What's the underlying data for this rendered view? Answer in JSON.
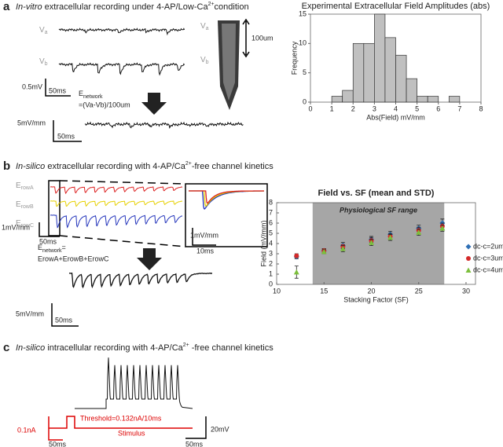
{
  "panel_a": {
    "letter": "a",
    "title_italic": "In-vitro",
    "title_text": " extracellular recording under 4-AP/Low-Ca",
    "title_sup": "2+",
    "title_end": "condition",
    "trace_labels": [
      {
        "main": "V",
        "sub": "a"
      },
      {
        "main": "V",
        "sub": "b"
      }
    ],
    "probe_labels": [
      {
        "main": "V",
        "sub": "a"
      },
      {
        "main": "V",
        "sub": "b"
      }
    ],
    "probe_scale": "100um",
    "scale_1": {
      "v": "0.5mV",
      "t": "50ms"
    },
    "equation": {
      "main": "E",
      "sub": "network",
      "line2": "=(Va-Vb)/100um"
    },
    "scale_2": {
      "v": "5mV/mm",
      "t": "50ms"
    }
  },
  "panel_b": {
    "letter": "b",
    "title_italic": "In-silico",
    "title_text": " extracellular recording with 4-AP/Ca",
    "title_sup": "2+",
    "title_end": "-free channel kinetics",
    "trace_labels": [
      {
        "main": "E",
        "sub": "rowA"
      },
      {
        "main": "E",
        "sub": "rowB"
      },
      {
        "main": "E",
        "sub": "rowC"
      }
    ],
    "scale_1": {
      "v": "1mV/mm",
      "t": "50ms"
    },
    "inset_scale": {
      "v": "1mV/mm",
      "t": "10ms"
    },
    "equation": {
      "main": "E",
      "sub": "network",
      "tail": "=",
      "line2": "ErowA+ErowB+ErowC"
    },
    "scale_2": {
      "v": "5mV/mm",
      "t": "50ms"
    }
  },
  "panel_c": {
    "letter": "c",
    "title_italic": "In-silico",
    "title_text": " intracellular recording with 4-AP/Ca",
    "title_sup": "2+",
    "title_end": " -free channel kinetics",
    "threshold": "Threshold=0.132nA/10ms",
    "stimulus": "Stimulus",
    "scale_i": {
      "v": "0.1nA",
      "t": "50ms"
    },
    "scale_v": {
      "v": "20mV",
      "t": "50ms"
    }
  },
  "chart_data": [
    {
      "type": "histogram",
      "title": "Experimental Extracellular Field Amplitudes (abs)",
      "xlabel": "Abs(Field) mV/mm",
      "ylabel": "Frequency",
      "bins": [
        1,
        1.5,
        2,
        2.5,
        3,
        3.5,
        4,
        4.5,
        5,
        5.5,
        6,
        6.5,
        7
      ],
      "values": [
        1,
        2,
        10,
        10,
        15,
        11,
        8,
        4,
        1,
        1,
        0,
        1
      ],
      "color": "#c0c0c0",
      "xlim": [
        0,
        8
      ],
      "xticks": [
        0,
        1,
        2,
        3,
        4,
        5,
        6,
        7,
        8
      ],
      "ylim": [
        0,
        15
      ],
      "yticks": [
        0,
        5,
        10,
        15
      ]
    },
    {
      "type": "scatter",
      "title": "Field vs. SF (mean and STD)",
      "xlabel": "Stacking Factor (SF)",
      "ylabel": "Field (mV/mm)",
      "shaded_region": {
        "x": [
          13.8,
          27.7
        ],
        "label": "Physiological SF range",
        "color": "#a6a6a6"
      },
      "x": [
        12.1,
        15,
        17,
        20,
        22,
        25,
        27.5
      ],
      "series": [
        {
          "name": "dc-c=2um",
          "color": "#2e6fb5",
          "marker": "diamond",
          "values": [
            2.7,
            3.3,
            3.8,
            4.4,
            4.9,
            5.5,
            6.0
          ],
          "errors": [
            0.2,
            0.2,
            0.3,
            0.3,
            0.3,
            0.3,
            0.4
          ]
        },
        {
          "name": "dc-c=3um",
          "color": "#d42a2a",
          "marker": "circle",
          "values": [
            2.8,
            3.3,
            3.7,
            4.3,
            4.7,
            5.3,
            5.7
          ],
          "errors": [
            0.2,
            0.2,
            0.2,
            0.3,
            0.3,
            0.3,
            0.3
          ]
        },
        {
          "name": "dc-c=4um",
          "color": "#7cbf3c",
          "marker": "triangle",
          "values": [
            1.2,
            3.2,
            3.5,
            4.1,
            4.6,
            5.1,
            5.5
          ],
          "errors": [
            0.6,
            0.2,
            0.3,
            0.3,
            0.3,
            0.3,
            0.3
          ]
        }
      ],
      "xlim": [
        10,
        31
      ],
      "xticks": [
        10,
        15,
        20,
        25,
        30
      ],
      "ylim": [
        0,
        8
      ],
      "yticks": [
        0,
        1,
        2,
        3,
        4,
        5,
        6,
        7,
        8
      ]
    }
  ]
}
